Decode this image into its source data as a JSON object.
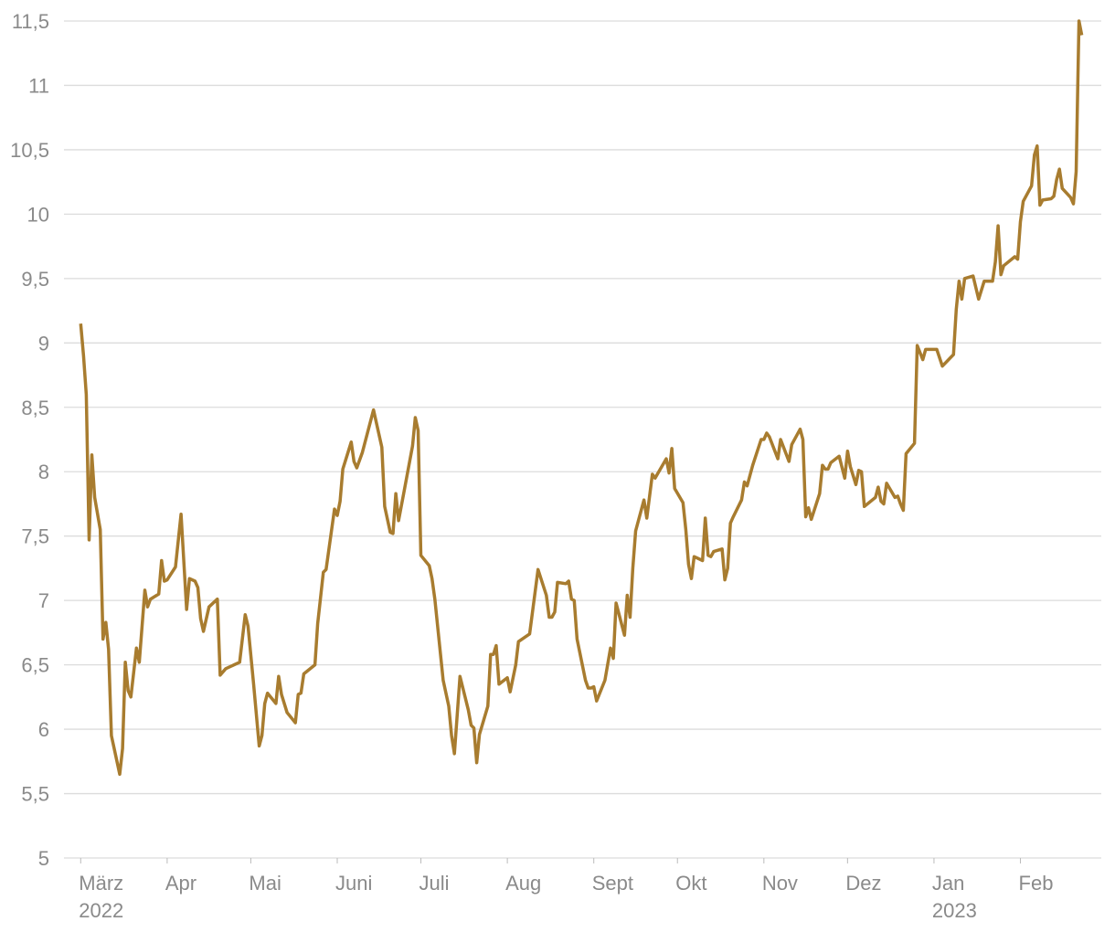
{
  "chart_data": {
    "type": "line",
    "color": "#a87c2f",
    "grid": true,
    "x": [
      0,
      1,
      2,
      3,
      4,
      5,
      7,
      8,
      9,
      10,
      11,
      14,
      15,
      16,
      17,
      18,
      20,
      21,
      23,
      24,
      25,
      28,
      29,
      30,
      31,
      34,
      36,
      38,
      39,
      41,
      42,
      43,
      44,
      46,
      49,
      50,
      52,
      57,
      59,
      60,
      62,
      64,
      65,
      66,
      67,
      70,
      71,
      72,
      74,
      77,
      78,
      79,
      80,
      84,
      85,
      87,
      88,
      91,
      92,
      93,
      94,
      97,
      98,
      99,
      101,
      105,
      108,
      109,
      111,
      112,
      113,
      114,
      116,
      119,
      120,
      121,
      122,
      125,
      126,
      127,
      130,
      132,
      133,
      134,
      136,
      139,
      140,
      141,
      142,
      143,
      146,
      147,
      148,
      149,
      150,
      153,
      154,
      156,
      157,
      161,
      164,
      167,
      168,
      169,
      170,
      171,
      174,
      175,
      176,
      177,
      178,
      181,
      182,
      183,
      184,
      185,
      188,
      190,
      191,
      192,
      195,
      196,
      197,
      198,
      199,
      202,
      203,
      205,
      206,
      210,
      211,
      212,
      213,
      216,
      217,
      218,
      219,
      220,
      223,
      224,
      225,
      226,
      227,
      230,
      231,
      232,
      233,
      234,
      237,
      238,
      239,
      241,
      244,
      245,
      246,
      247,
      250,
      251,
      254,
      255,
      258,
      259,
      260,
      261,
      262,
      265,
      266,
      267,
      268,
      269,
      272,
      274,
      275,
      276,
      278,
      279,
      280,
      281,
      285,
      286,
      287,
      288,
      289,
      292,
      293,
      294,
      295,
      296,
      299,
      300,
      302,
      303,
      307,
      309,
      313,
      314,
      315,
      316,
      317,
      320,
      322,
      324,
      327,
      328,
      329,
      330,
      331,
      335,
      336,
      337,
      338,
      341,
      342,
      343,
      344,
      345,
      348,
      349,
      350,
      351,
      352,
      355,
      356,
      357,
      358,
      359
    ],
    "values": [
      9.15,
      8.9,
      8.6,
      7.47,
      8.13,
      7.8,
      7.55,
      6.7,
      6.83,
      6.62,
      5.95,
      5.65,
      5.85,
      6.52,
      6.3,
      6.25,
      6.63,
      6.52,
      7.08,
      6.95,
      7.01,
      7.05,
      7.31,
      7.15,
      7.16,
      7.26,
      7.67,
      6.93,
      7.17,
      7.15,
      7.1,
      6.86,
      6.76,
      6.95,
      7.01,
      6.42,
      6.47,
      6.52,
      6.89,
      6.8,
      6.35,
      5.87,
      5.95,
      6.2,
      6.28,
      6.2,
      6.41,
      6.27,
      6.13,
      6.05,
      6.27,
      6.28,
      6.43,
      6.5,
      6.82,
      7.22,
      7.24,
      7.71,
      7.66,
      7.77,
      8.02,
      8.23,
      8.08,
      8.03,
      8.15,
      8.48,
      8.19,
      7.73,
      7.53,
      7.52,
      7.83,
      7.62,
      7.85,
      8.2,
      8.42,
      8.32,
      7.35,
      7.27,
      7.17,
      7.01,
      6.38,
      6.18,
      5.95,
      5.81,
      6.41,
      6.15,
      6.03,
      6.01,
      5.74,
      5.96,
      6.18,
      6.58,
      6.58,
      6.65,
      6.35,
      6.4,
      6.29,
      6.5,
      6.68,
      6.74,
      7.24,
      7.04,
      6.87,
      6.87,
      6.91,
      7.14,
      7.13,
      7.15,
      7.01,
      7.0,
      6.7,
      6.38,
      6.32,
      6.32,
      6.33,
      6.22,
      6.38,
      6.63,
      6.55,
      6.98,
      6.73,
      7.04,
      6.87,
      7.25,
      7.54,
      7.78,
      7.64,
      7.98,
      7.95,
      8.1,
      7.99,
      8.18,
      7.87,
      7.76,
      7.55,
      7.28,
      7.17,
      7.34,
      7.31,
      7.64,
      7.35,
      7.34,
      7.38,
      7.4,
      7.16,
      7.25,
      7.6,
      7.65,
      7.78,
      7.92,
      7.89,
      8.05,
      8.25,
      8.25,
      8.3,
      8.27,
      8.1,
      8.25,
      8.08,
      8.21,
      8.33,
      8.25,
      7.65,
      7.72,
      7.63,
      7.83,
      8.05,
      8.02,
      8.02,
      8.07,
      8.12,
      7.95,
      8.16,
      8.04,
      7.9,
      8.01,
      8.0,
      7.73,
      7.8,
      7.88,
      7.77,
      7.75,
      7.91,
      7.8,
      7.81,
      7.75,
      7.7,
      8.14,
      8.22,
      8.98,
      8.87,
      8.95,
      8.95,
      8.82,
      8.91,
      9.26,
      9.48,
      9.34,
      9.5,
      9.52,
      9.34,
      9.48,
      9.48,
      9.63,
      9.91,
      9.53,
      9.6,
      9.67,
      9.65,
      9.94,
      10.1,
      10.22,
      10.46,
      10.53,
      10.07,
      10.11,
      10.12,
      10.14,
      10.27,
      10.35,
      10.2,
      10.13,
      10.08,
      10.33,
      11.5,
      11.39
    ],
    "xlim": [
      -6,
      366
    ],
    "xticks": [
      {
        "value": 0,
        "label": "März\n2022"
      },
      {
        "value": 31,
        "label": "Apr"
      },
      {
        "value": 61,
        "label": "Mai"
      },
      {
        "value": 92,
        "label": "Juni"
      },
      {
        "value": 122,
        "label": "Juli"
      },
      {
        "value": 153,
        "label": "Aug"
      },
      {
        "value": 184,
        "label": "Sept"
      },
      {
        "value": 214,
        "label": "Okt"
      },
      {
        "value": 245,
        "label": "Nov"
      },
      {
        "value": 275,
        "label": "Dez"
      },
      {
        "value": 306,
        "label": "Jan\n2023"
      },
      {
        "value": 337,
        "label": "Feb"
      }
    ],
    "ylim": [
      5,
      11.5
    ],
    "yticks": [
      5,
      {
        "value": 5.5,
        "label": "5,5"
      },
      6,
      {
        "value": 6.5,
        "label": "6,5"
      },
      7,
      {
        "value": 7.5,
        "label": "7,5"
      },
      8,
      {
        "value": 8.5,
        "label": "8,5"
      },
      9,
      {
        "value": 9.5,
        "label": "9,5"
      },
      10,
      {
        "value": 10.5,
        "label": "10,5"
      },
      11,
      {
        "value": 11.5,
        "label": "11,5"
      }
    ]
  }
}
